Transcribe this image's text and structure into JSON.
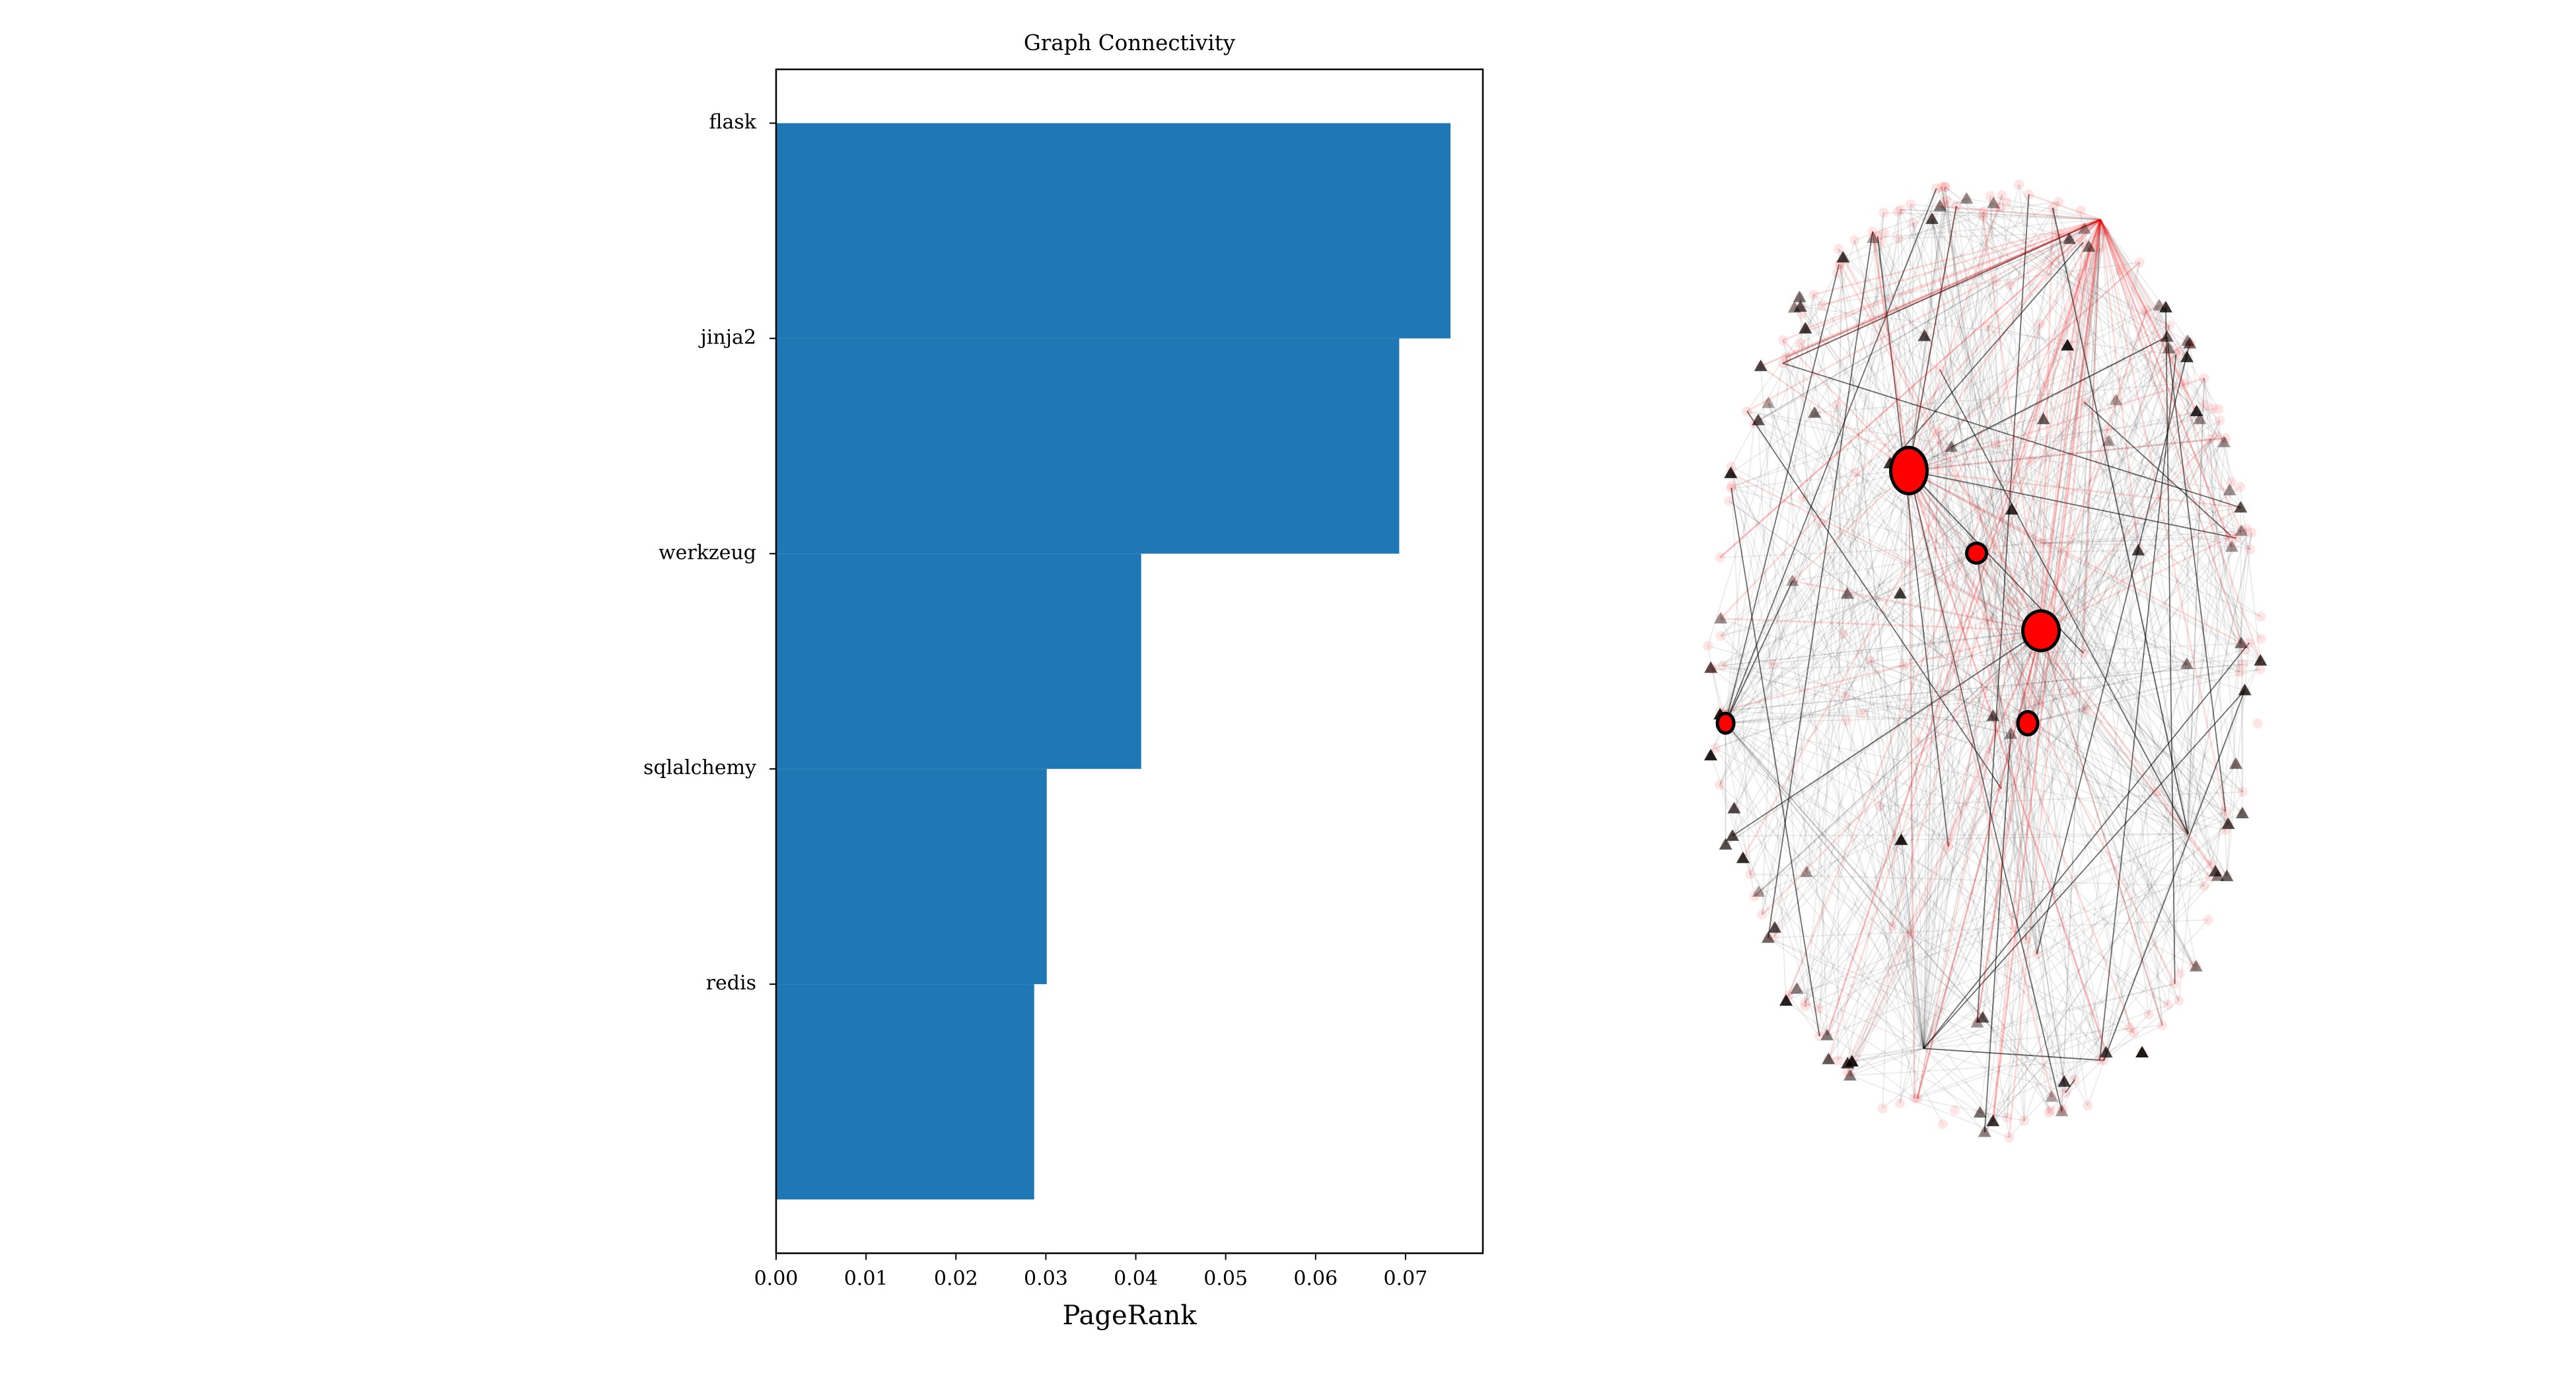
{
  "chart_data": {
    "type": "barh",
    "title": "Graph Connectivity",
    "categories": [
      "flask",
      "jinja2",
      "werkzeug",
      "sqlalchemy",
      "redis"
    ],
    "values": [
      0.075,
      0.0693,
      0.0406,
      0.0301,
      0.0287
    ],
    "color": "#1f77b4",
    "xlabel": "PageRank",
    "xlim": [
      0,
      0.0786
    ],
    "xticks": [
      {
        "value": 0,
        "label": "0.00"
      },
      {
        "value": 0.01,
        "label": "0.01"
      },
      {
        "value": 0.02,
        "label": "0.02"
      },
      {
        "value": 0.03,
        "label": "0.03"
      },
      {
        "value": 0.04,
        "label": "0.04"
      },
      {
        "value": 0.05,
        "label": "0.05"
      },
      {
        "value": 0.06,
        "label": "0.06"
      },
      {
        "value": 0.07,
        "label": "0.07"
      }
    ],
    "grid": false
  }
}
